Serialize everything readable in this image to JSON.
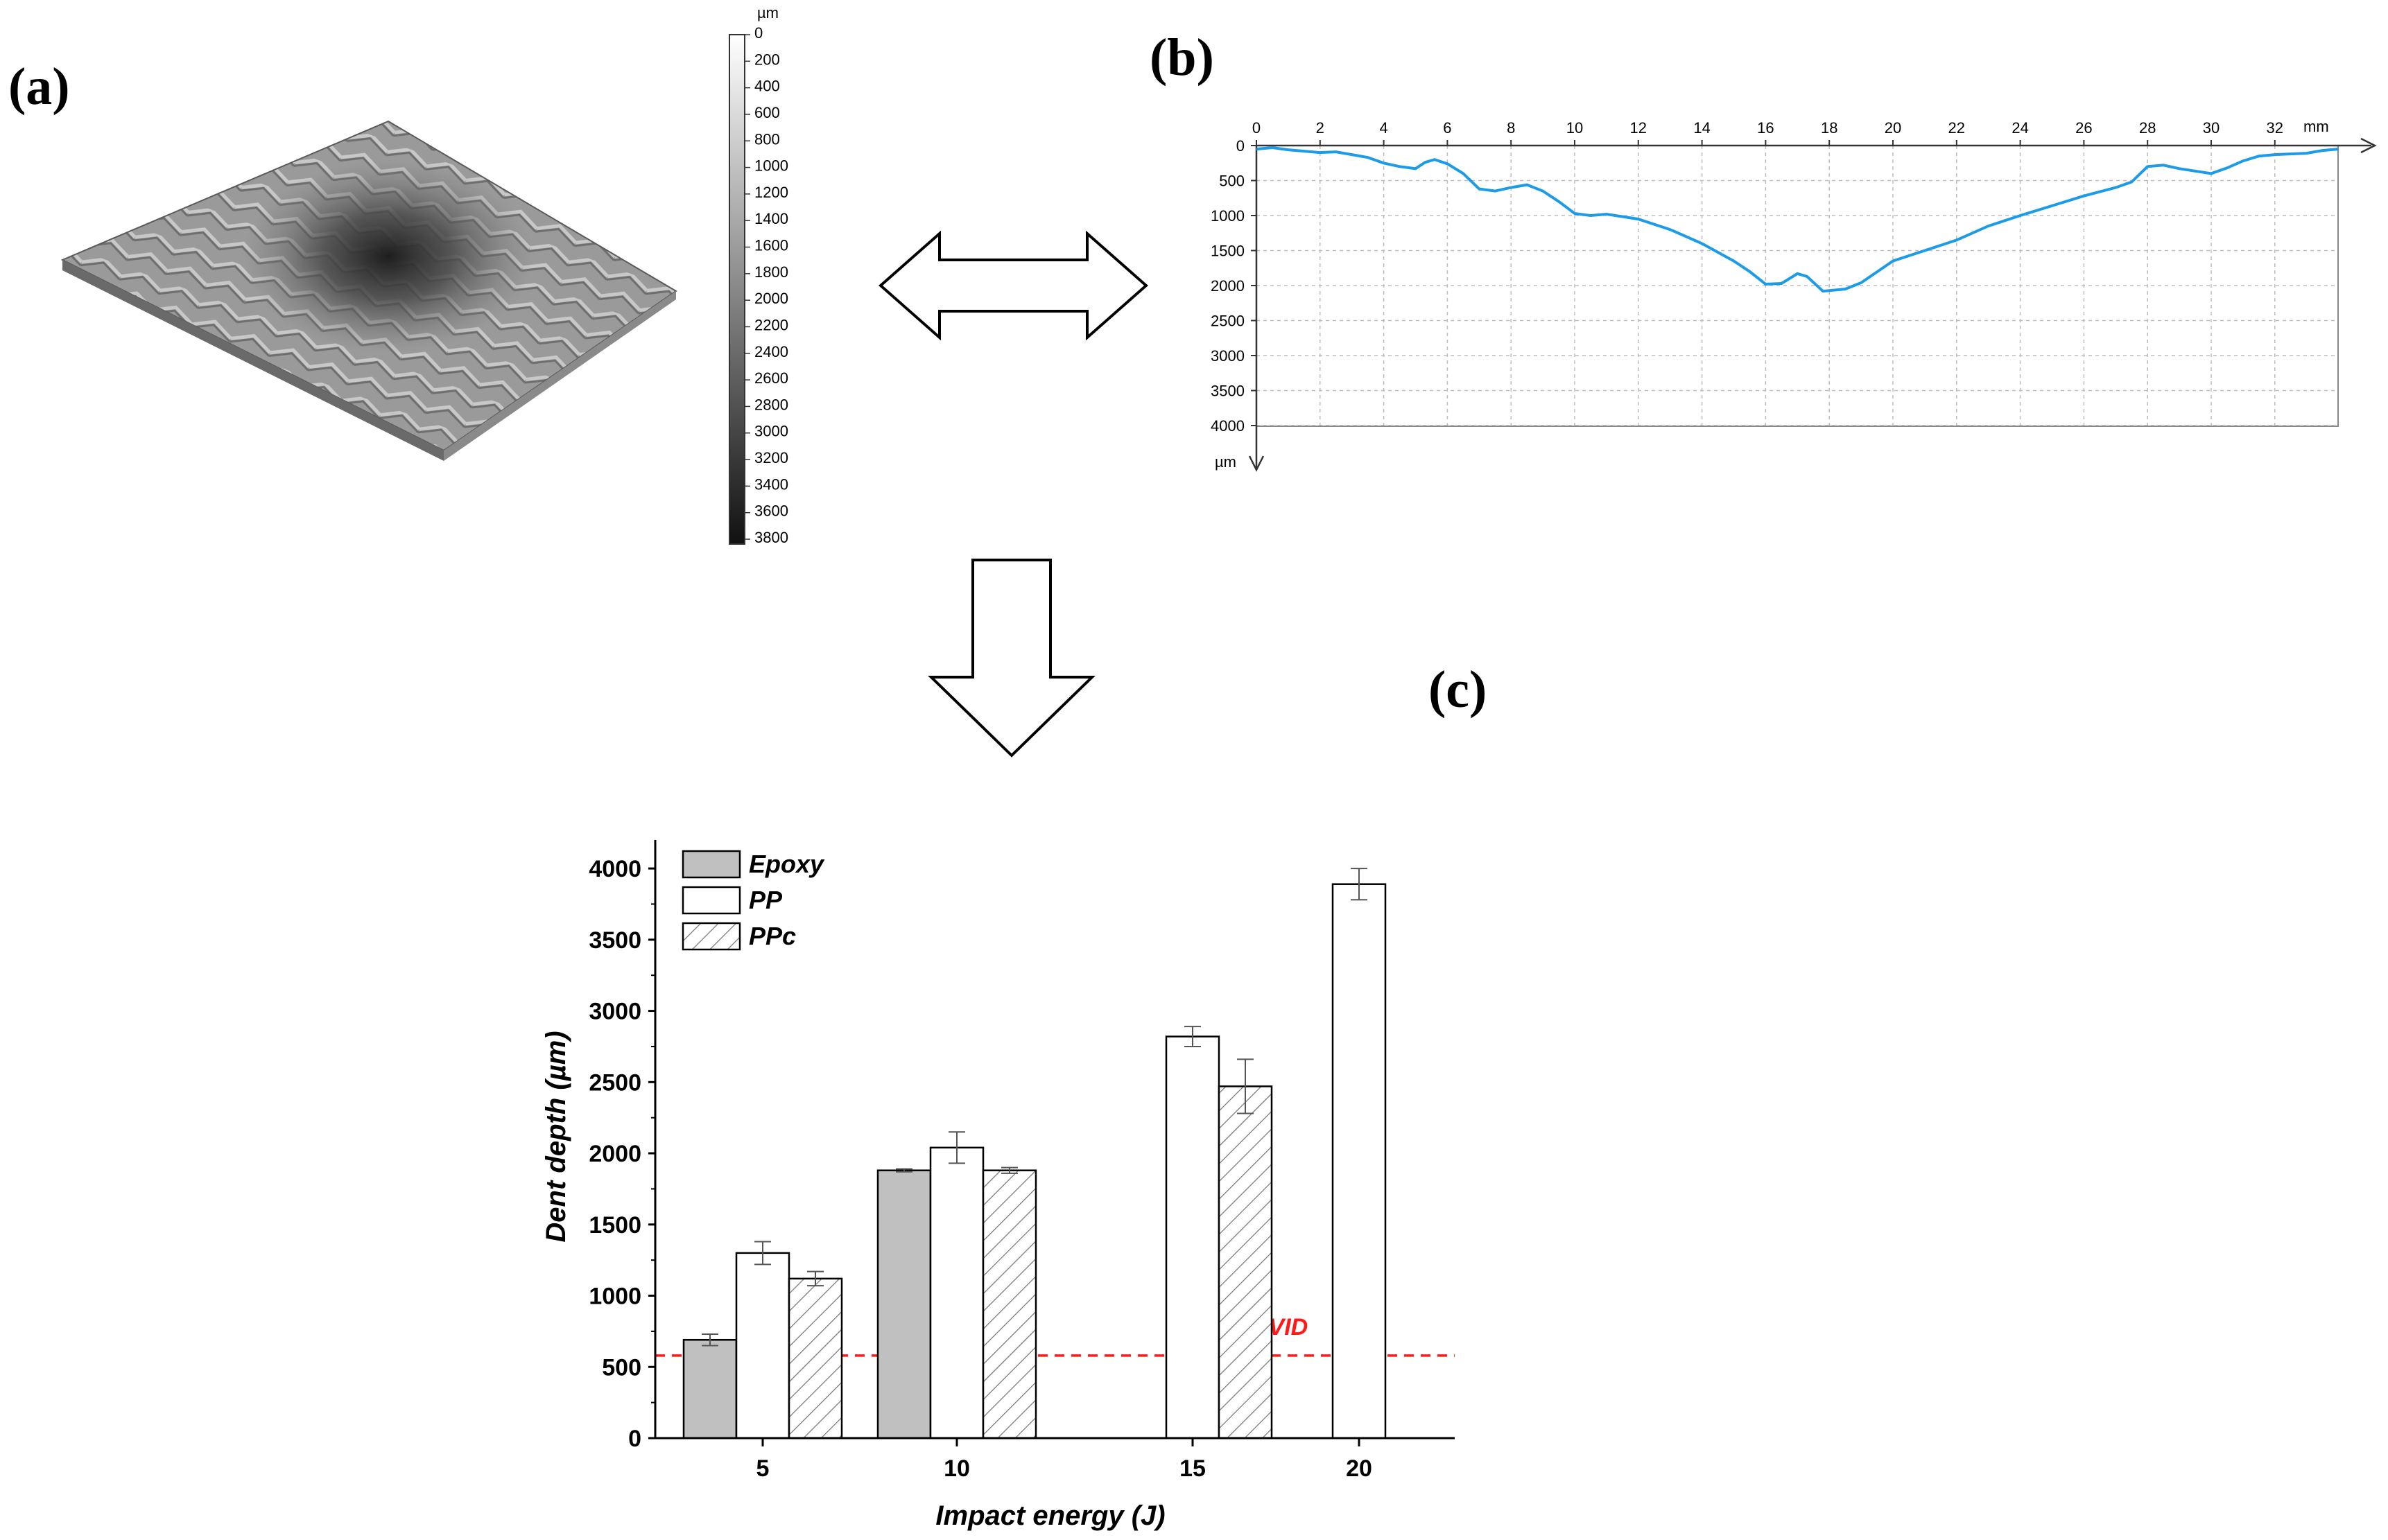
{
  "panels": {
    "a": {
      "label": "(a)"
    },
    "b": {
      "label": "(b)"
    },
    "c": {
      "label": "(c)"
    }
  },
  "colorbar": {
    "unit": "µm",
    "ticks": [
      "0",
      "200",
      "400",
      "600",
      "800",
      "1000",
      "1200",
      "1400",
      "1600",
      "1800",
      "2000",
      "2200",
      "2400",
      "2600",
      "2800",
      "3000",
      "3200",
      "3400",
      "3600",
      "3800"
    ]
  },
  "profile": {
    "x_unit": "mm",
    "y_unit": "µm",
    "x_ticks": [
      "0",
      "2",
      "4",
      "6",
      "8",
      "10",
      "12",
      "14",
      "16",
      "18",
      "20",
      "22",
      "24",
      "26",
      "28",
      "30",
      "32"
    ],
    "y_ticks": [
      "0",
      "500",
      "1000",
      "1500",
      "2000",
      "2500",
      "3000",
      "3500",
      "4000"
    ],
    "color": "#1c9be6",
    "points": [
      [
        0,
        50
      ],
      [
        0.5,
        30
      ],
      [
        1,
        60
      ],
      [
        1.5,
        80
      ],
      [
        2,
        100
      ],
      [
        2.5,
        90
      ],
      [
        3,
        130
      ],
      [
        3.5,
        170
      ],
      [
        4,
        250
      ],
      [
        4.5,
        300
      ],
      [
        5,
        330
      ],
      [
        5.3,
        240
      ],
      [
        5.6,
        200
      ],
      [
        6,
        260
      ],
      [
        6.5,
        400
      ],
      [
        7,
        620
      ],
      [
        7.5,
        650
      ],
      [
        8,
        600
      ],
      [
        8.5,
        560
      ],
      [
        9,
        650
      ],
      [
        9.5,
        800
      ],
      [
        10,
        970
      ],
      [
        10.5,
        1000
      ],
      [
        11,
        980
      ],
      [
        12,
        1050
      ],
      [
        13,
        1200
      ],
      [
        14,
        1400
      ],
      [
        15,
        1650
      ],
      [
        15.5,
        1800
      ],
      [
        16,
        1980
      ],
      [
        16.5,
        1970
      ],
      [
        17,
        1830
      ],
      [
        17.3,
        1870
      ],
      [
        17.8,
        2080
      ],
      [
        18.5,
        2050
      ],
      [
        19,
        1960
      ],
      [
        20,
        1650
      ],
      [
        21,
        1500
      ],
      [
        22,
        1350
      ],
      [
        23,
        1150
      ],
      [
        24,
        1000
      ],
      [
        25,
        860
      ],
      [
        26,
        720
      ],
      [
        27,
        600
      ],
      [
        27.5,
        520
      ],
      [
        28,
        300
      ],
      [
        28.5,
        280
      ],
      [
        29,
        330
      ],
      [
        30,
        400
      ],
      [
        30.5,
        320
      ],
      [
        31,
        220
      ],
      [
        31.5,
        150
      ],
      [
        32,
        130
      ],
      [
        32.5,
        120
      ],
      [
        33,
        110
      ],
      [
        33.5,
        70
      ],
      [
        34,
        50
      ]
    ]
  },
  "chart_data": {
    "type": "bar",
    "xlabel": "Impact energy (J)",
    "ylabel": "Dent depth (µm)",
    "categories": [
      "5",
      "10",
      "15",
      "20"
    ],
    "ylim": [
      0,
      4200
    ],
    "yticks": [
      "0",
      "500",
      "1000",
      "1500",
      "2000",
      "2500",
      "3000",
      "3500",
      "4000"
    ],
    "legend_position": "top-left",
    "series": [
      {
        "name": "Epoxy",
        "values": [
          690,
          1880,
          null,
          null
        ],
        "errors": [
          40,
          10,
          null,
          null
        ],
        "fill": "#c0c0c0"
      },
      {
        "name": "PP",
        "values": [
          1300,
          2040,
          2820,
          3890
        ],
        "errors": [
          80,
          110,
          70,
          110
        ],
        "fill": "#ffffff"
      },
      {
        "name": "PPc",
        "values": [
          1120,
          1880,
          2470,
          null
        ],
        "errors": [
          50,
          20,
          190,
          null
        ],
        "fill": "hatch"
      }
    ],
    "threshold": {
      "label": "BVID",
      "value": 580,
      "color": "#ff1a1a"
    }
  }
}
